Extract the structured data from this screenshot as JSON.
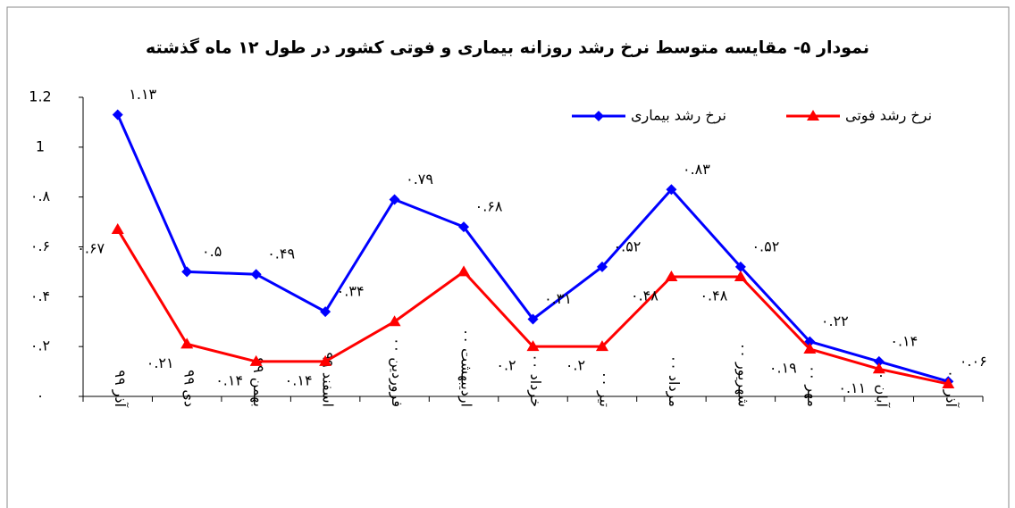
{
  "chart_data": {
    "type": "line",
    "title": "نمودار ۵- مقایسه متوسط نرخ رشد روزانه بیماری و فوتی کشور در  طول ۱۲ ماه گذشته",
    "categories": [
      "آذر ۹۹",
      "دی ۹۹",
      "بهمن ۹۹",
      "اسفند ۹۹",
      "فروردین ۰۰",
      "اردیبهشت ۰۰",
      "خرداد ۰۰",
      "تیر ۰۰",
      "مرداد ۰۰",
      "شهریور ۰۰",
      "مهر ۰۰",
      "آبان ۰۰",
      "آذر ۰۰"
    ],
    "series": [
      {
        "name": "نرخ رشد بیماری",
        "color": "#0000ff",
        "marker": "diamond",
        "values": [
          1.13,
          0.5,
          0.49,
          0.34,
          0.79,
          0.68,
          0.31,
          0.52,
          0.83,
          0.52,
          0.22,
          0.14,
          0.06
        ],
        "value_labels": [
          "۱.۱۳",
          "۰.۵",
          "۰.۴۹",
          "۰.۳۴",
          "۰.۷۹",
          "۰.۶۸",
          "۰.۳۱",
          "۰.۵۲",
          "۰.۸۳",
          "۰.۵۲",
          "۰.۲۲",
          "۰.۱۴",
          "۰.۰۶"
        ]
      },
      {
        "name": "نرخ رشد فوتی",
        "color": "#ff0000",
        "marker": "triangle",
        "values": [
          0.67,
          0.21,
          0.14,
          0.14,
          0.3,
          0.5,
          0.2,
          0.2,
          0.48,
          0.48,
          0.19,
          0.11,
          0.05
        ],
        "value_labels": [
          "۰.۶۷",
          "۰.۲۱",
          "۰.۱۴",
          "۰.۱۴",
          null,
          null,
          "۰.۲",
          "۰.۲",
          "۰.۴۸",
          "۰.۴۸",
          "۰.۱۹",
          "۰.۱۱",
          null
        ]
      }
    ],
    "ylim": [
      0,
      1.2
    ],
    "yticks": [
      {
        "value": 0,
        "label": "۰"
      },
      {
        "value": 0.2,
        "label": "۰.۲"
      },
      {
        "value": 0.4,
        "label": "۰.۴"
      },
      {
        "value": 0.6,
        "label": "۰.۶"
      },
      {
        "value": 0.8,
        "label": "۰.۸"
      },
      1,
      1.2
    ],
    "grid": false,
    "legend": "top-right"
  }
}
